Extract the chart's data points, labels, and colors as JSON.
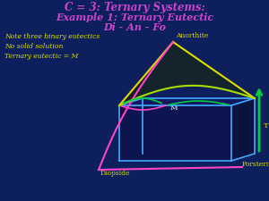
{
  "title_line1": "C = 3: Ternary Systems:",
  "title_line2": "Example 1: Ternary Eutectic",
  "title_line3": "Di - An - Fo",
  "title_color": "#cc44cc",
  "note1": "Note three binary eutectics",
  "note2": "No solid solution",
  "note3": "Ternary eutectic = M",
  "note_color": "#dddd00",
  "bg_color": "#0d1f5c",
  "label_anorthite": "Anorthite",
  "label_diopside": "Diopside",
  "label_forsterite": "Forsterite",
  "label_M": "M",
  "label_T": "T",
  "label_color": "#dddd00",
  "cyan": "#44aaff",
  "magenta": "#ff44cc",
  "yellow": "#dddd00",
  "yellow_green": "#aadd00",
  "green": "#00cc44",
  "figsize": [
    3.0,
    2.25
  ],
  "dpi": 100
}
